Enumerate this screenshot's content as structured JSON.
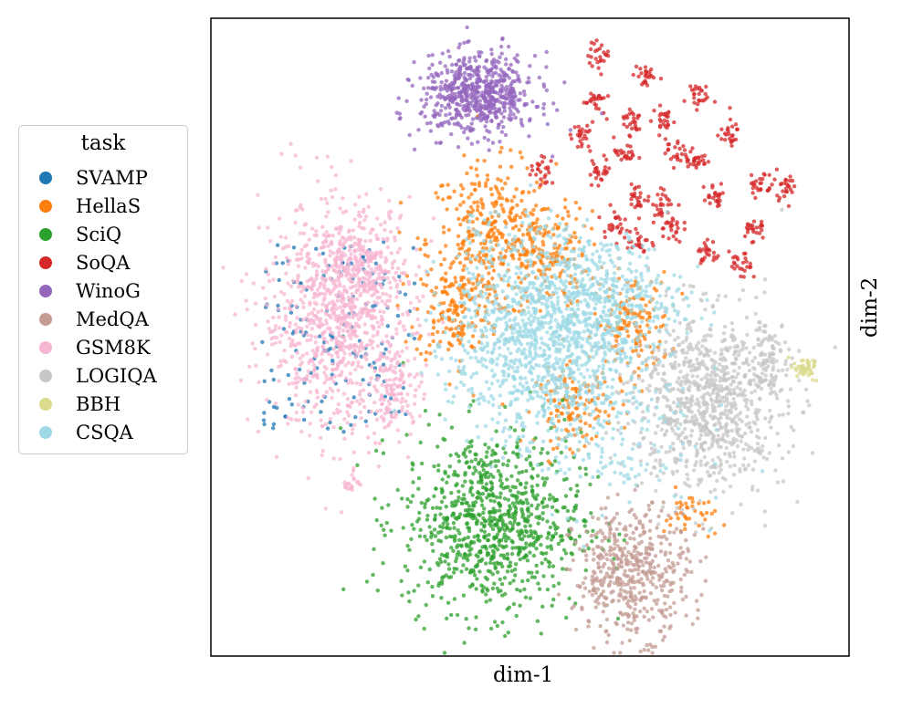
{
  "chart_data": {
    "type": "scatter",
    "xlabel": "dim-1",
    "ylabel": "dim-2",
    "xlim": [
      0,
      100
    ],
    "ylim": [
      0,
      100
    ],
    "grid": false,
    "ticks": "hidden",
    "legend": {
      "title": "task",
      "placement": "left-outside",
      "entries": [
        "SVAMP",
        "HellaS",
        "SciQ",
        "SoQA",
        "WinoG",
        "MedQA",
        "GSM8K",
        "LOGIQA",
        "BBH",
        "CSQA"
      ]
    },
    "series": [
      {
        "name": "SVAMP",
        "color": "#1f77b4",
        "clusters": [
          {
            "cx": 20,
            "cy": 50,
            "sx": 12,
            "sy": 15,
            "n": 160,
            "sparse": true
          }
        ]
      },
      {
        "name": "HellaS",
        "color": "#ff7f0e",
        "clusters": [
          {
            "cx": 44,
            "cy": 65,
            "sx": 5,
            "sy": 6,
            "n": 380
          },
          {
            "cx": 38,
            "cy": 54,
            "sx": 3,
            "sy": 4,
            "n": 140
          },
          {
            "cx": 53,
            "cy": 63,
            "sx": 3,
            "sy": 4,
            "n": 140
          },
          {
            "cx": 66,
            "cy": 52,
            "sx": 3,
            "sy": 4,
            "n": 150
          },
          {
            "cx": 57,
            "cy": 39,
            "sx": 3,
            "sy": 3,
            "n": 130
          },
          {
            "cx": 75,
            "cy": 22,
            "sx": 2,
            "sy": 2,
            "n": 40
          }
        ]
      },
      {
        "name": "SciQ",
        "color": "#2ca02c",
        "clusters": [
          {
            "cx": 44,
            "cy": 21,
            "sx": 7,
            "sy": 7,
            "n": 900
          }
        ]
      },
      {
        "name": "SoQA",
        "color": "#d62728",
        "clusters": [
          {
            "cx": 61,
            "cy": 94,
            "sx": 0.9,
            "sy": 1.1,
            "n": 25
          },
          {
            "cx": 68,
            "cy": 91,
            "sx": 0.9,
            "sy": 1.1,
            "n": 25
          },
          {
            "cx": 60,
            "cy": 87,
            "sx": 0.9,
            "sy": 1.1,
            "n": 25
          },
          {
            "cx": 76,
            "cy": 88,
            "sx": 0.9,
            "sy": 1.1,
            "n": 25
          },
          {
            "cx": 66,
            "cy": 84,
            "sx": 0.9,
            "sy": 1.1,
            "n": 25
          },
          {
            "cx": 71,
            "cy": 84,
            "sx": 0.9,
            "sy": 1.1,
            "n": 25
          },
          {
            "cx": 81,
            "cy": 82,
            "sx": 0.9,
            "sy": 1.1,
            "n": 25
          },
          {
            "cx": 58,
            "cy": 81,
            "sx": 0.9,
            "sy": 1.1,
            "n": 25
          },
          {
            "cx": 65,
            "cy": 79,
            "sx": 0.9,
            "sy": 1.1,
            "n": 25
          },
          {
            "cx": 73,
            "cy": 79,
            "sx": 0.9,
            "sy": 1.1,
            "n": 25
          },
          {
            "cx": 76,
            "cy": 78,
            "sx": 0.9,
            "sy": 1.1,
            "n": 25
          },
          {
            "cx": 52,
            "cy": 76,
            "sx": 0.9,
            "sy": 1.1,
            "n": 25
          },
          {
            "cx": 61,
            "cy": 76,
            "sx": 0.9,
            "sy": 1.1,
            "n": 25
          },
          {
            "cx": 67,
            "cy": 72,
            "sx": 0.9,
            "sy": 1.1,
            "n": 25
          },
          {
            "cx": 71,
            "cy": 71,
            "sx": 0.9,
            "sy": 1.1,
            "n": 25
          },
          {
            "cx": 79,
            "cy": 72,
            "sx": 0.9,
            "sy": 1.1,
            "n": 25
          },
          {
            "cx": 86,
            "cy": 74,
            "sx": 0.9,
            "sy": 1.1,
            "n": 25
          },
          {
            "cx": 63,
            "cy": 68,
            "sx": 0.9,
            "sy": 1.1,
            "n": 25
          },
          {
            "cx": 72,
            "cy": 67,
            "sx": 0.9,
            "sy": 1.1,
            "n": 25
          },
          {
            "cx": 85,
            "cy": 67,
            "sx": 0.9,
            "sy": 1.1,
            "n": 25
          },
          {
            "cx": 67,
            "cy": 65,
            "sx": 0.9,
            "sy": 1.1,
            "n": 25
          },
          {
            "cx": 78,
            "cy": 63,
            "sx": 0.9,
            "sy": 1.1,
            "n": 25
          },
          {
            "cx": 90,
            "cy": 74,
            "sx": 0.9,
            "sy": 1.1,
            "n": 25
          },
          {
            "cx": 83,
            "cy": 61,
            "sx": 0.9,
            "sy": 1.1,
            "n": 25
          }
        ]
      },
      {
        "name": "WinoG",
        "color": "#9467bd",
        "clusters": [
          {
            "cx": 42,
            "cy": 88,
            "sx": 4.5,
            "sy": 3.2,
            "n": 650
          }
        ]
      },
      {
        "name": "MedQA",
        "color": "#c49c94",
        "clusters": [
          {
            "cx": 66,
            "cy": 13,
            "sx": 4.5,
            "sy": 5,
            "n": 500
          }
        ]
      },
      {
        "name": "GSM8K",
        "color": "#f7b6d2",
        "clusters": [
          {
            "cx": 20,
            "cy": 53,
            "sx": 6,
            "sy": 9,
            "n": 900
          },
          {
            "cx": 23,
            "cy": 60,
            "sx": 3,
            "sy": 4,
            "n": 200
          },
          {
            "cx": 29,
            "cy": 42,
            "sx": 2,
            "sy": 3,
            "n": 100
          },
          {
            "cx": 22,
            "cy": 27,
            "sx": 0.8,
            "sy": 0.8,
            "n": 18
          }
        ]
      },
      {
        "name": "LOGIQA",
        "color": "#c7c7c7",
        "clusters": [
          {
            "cx": 78,
            "cy": 40,
            "sx": 6,
            "sy": 7,
            "n": 900
          },
          {
            "cx": 87,
            "cy": 46,
            "sx": 1.5,
            "sy": 2,
            "n": 60
          },
          {
            "cx": 87,
            "cy": 50,
            "sx": 1,
            "sy": 0.8,
            "n": 10
          }
        ]
      },
      {
        "name": "BBH",
        "color": "#dbdb8d",
        "clusters": [
          {
            "cx": 93,
            "cy": 45,
            "sx": 1.2,
            "sy": 0.8,
            "n": 45
          }
        ]
      },
      {
        "name": "CSQA",
        "color": "#9edae5",
        "clusters": [
          {
            "cx": 52,
            "cy": 49,
            "sx": 7,
            "sy": 7,
            "n": 900
          },
          {
            "cx": 62,
            "cy": 56,
            "sx": 6,
            "sy": 5,
            "n": 400
          },
          {
            "cx": 60,
            "cy": 35,
            "sx": 8,
            "sy": 6,
            "n": 200
          },
          {
            "cx": 48,
            "cy": 60,
            "sx": 8,
            "sy": 10,
            "n": 150,
            "sparse": true
          }
        ]
      }
    ]
  }
}
